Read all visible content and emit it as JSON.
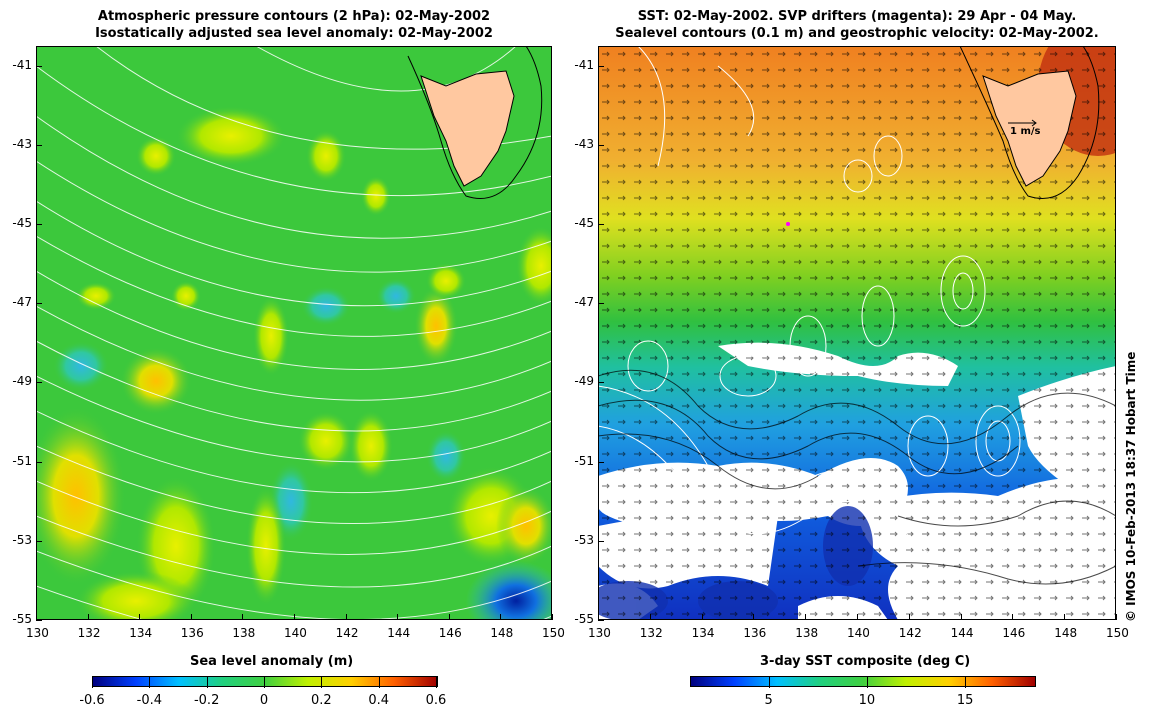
{
  "left_panel": {
    "title_line1": "Atmospheric pressure contours (2 hPa): 02-May-2002",
    "title_line2": "Isostatically adjusted sea level anomaly: 02-May-2002",
    "colorbar_title": "Sea level anomaly (m)",
    "colorbar_ticks": [
      "-0.6",
      "-0.4",
      "-0.2",
      "0",
      "0.2",
      "0.4",
      "0.6"
    ],
    "colorbar_range": [
      -0.6,
      0.6
    ],
    "colorbar_colors": [
      "#00007f",
      "#0040ff",
      "#00c0ff",
      "#20d080",
      "#40d040",
      "#c0f000",
      "#ffd000",
      "#ff6000",
      "#a00000"
    ]
  },
  "right_panel": {
    "title_line1": "SST: 02-May-2002. SVP drifters (magenta): 29 Apr - 04 May.",
    "title_line2": "Sealevel contours (0.1 m) and geostrophic velocity: 02-May-2002.",
    "colorbar_title": "3-day SST composite (deg C)",
    "colorbar_ticks": [
      "5",
      "10",
      "15"
    ],
    "colorbar_range": [
      1,
      18.5
    ],
    "colorbar_colors": [
      "#00007f",
      "#0040ff",
      "#00c0ff",
      "#20d080",
      "#40d040",
      "#c0f000",
      "#ffd000",
      "#ff6000",
      "#a00000"
    ],
    "velocity_scale_label": "1 m/s"
  },
  "axes": {
    "lon_ticks": [
      "130",
      "132",
      "134",
      "136",
      "138",
      "140",
      "142",
      "144",
      "146",
      "148",
      "150"
    ],
    "lat_ticks": [
      "-41",
      "-43",
      "-45",
      "-47",
      "-49",
      "-51",
      "-53",
      "-55"
    ],
    "lon_range": [
      130,
      150
    ],
    "lat_range": [
      -55,
      -40.5
    ]
  },
  "credit": "© IMOS 10-Feb-2013 18:37 Hobart Time",
  "colors": {
    "land": "#ffc8a0",
    "sla_background": "#3cc83c",
    "sst_warm": "#f0a030",
    "sst_cool": "#30b8d0",
    "cloud": "#ffffff"
  }
}
